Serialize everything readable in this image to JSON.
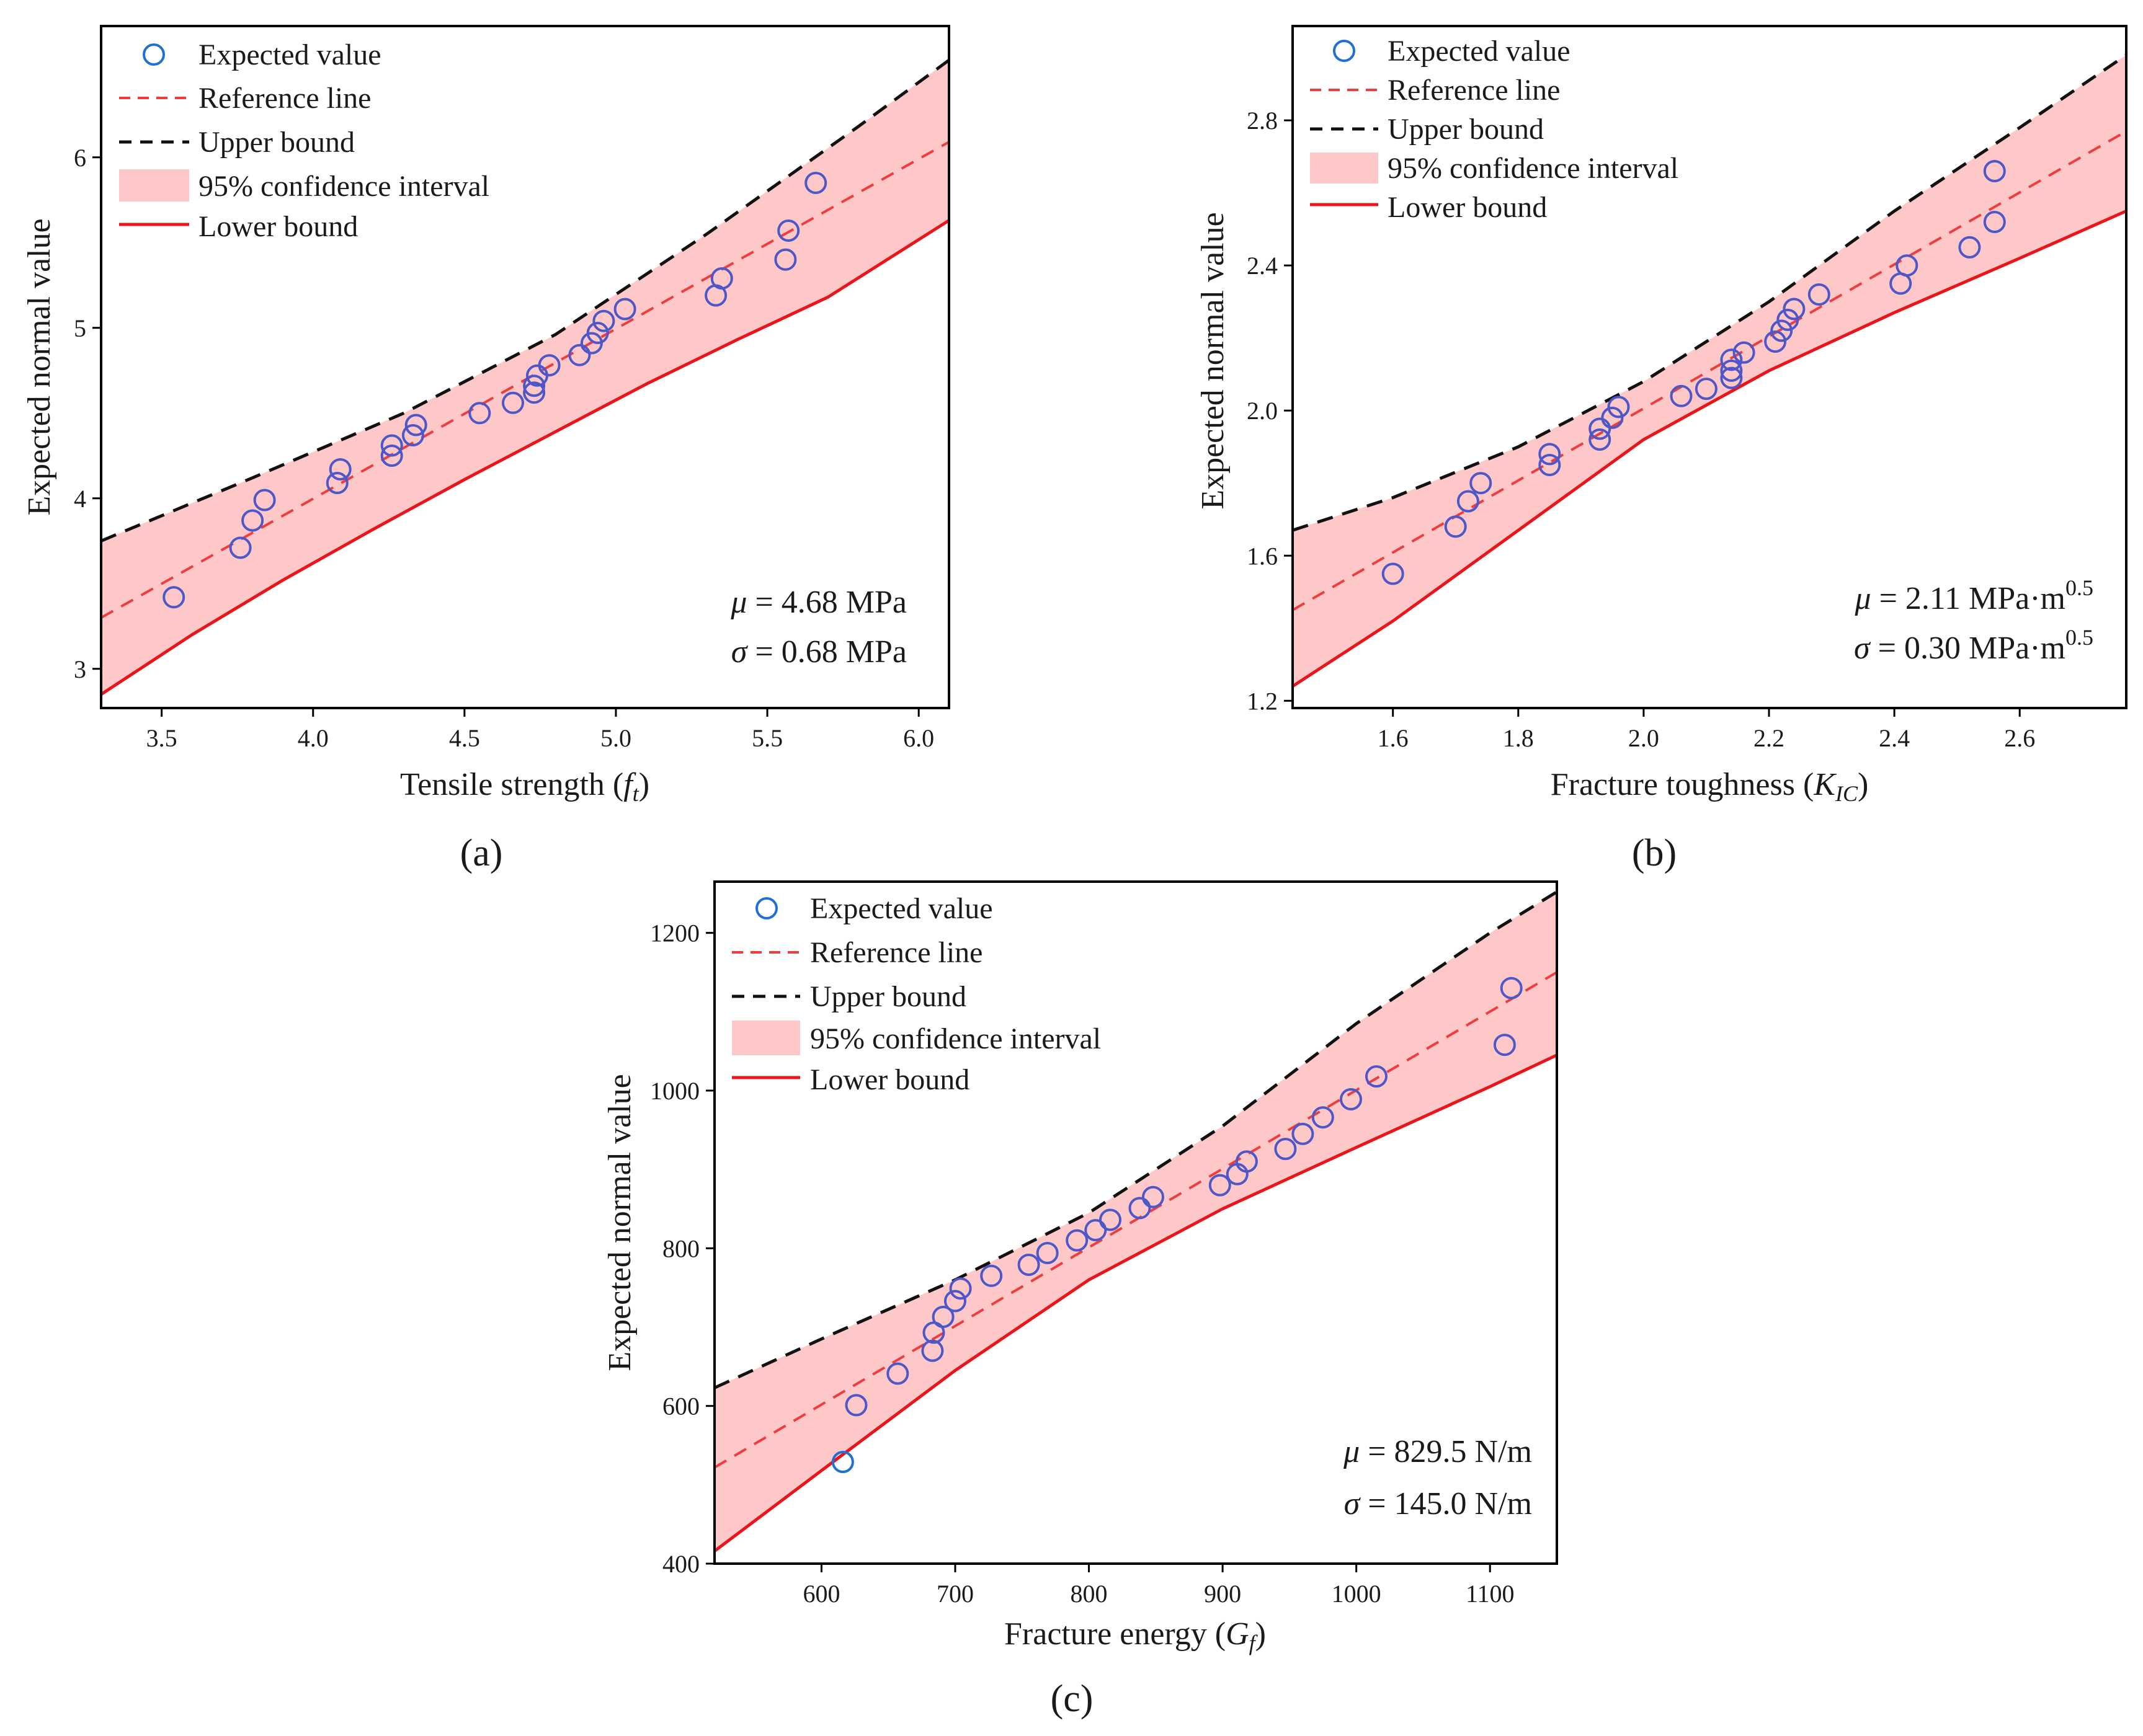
{
  "colors": {
    "marker": "#4d57c8",
    "legend_marker": "#1f6fd6",
    "reference": "#f03c3c",
    "upper": "#111111",
    "lower": "#e8151a",
    "band": "#ffc8c8",
    "axis": "#000000"
  },
  "legend": {
    "expected": "Expected value",
    "reference": "Reference line",
    "upper": "Upper bound",
    "ci": "95% confidence interval",
    "lower": "Lower bound"
  },
  "chart_data": [
    {
      "panel": "a",
      "panel_label": "(a)",
      "type": "scatter",
      "xlabel_main": "Tensile strength (",
      "xlabel_var": "f",
      "xlabel_sub": "t",
      "xlabel_close": ")",
      "ylabel": "Expected normal value",
      "xlim": [
        3.3,
        6.1
      ],
      "ylim": [
        2.77,
        6.77
      ],
      "xticks": [
        3.5,
        4.0,
        4.5,
        5.0,
        5.5,
        6.0
      ],
      "xtick_labels": [
        "3.5",
        "4.0",
        "4.5",
        "5.0",
        "5.5",
        "6.0"
      ],
      "yticks": [
        3,
        4,
        5,
        6
      ],
      "ytick_labels": [
        "3",
        "4",
        "5",
        "6"
      ],
      "mu_symbol": "μ",
      "mu_text": " = 4.68 MPa",
      "mu_sup": "",
      "sigma_symbol": "σ",
      "sigma_text": " = 0.68 MPa",
      "sigma_sup": "",
      "points": [
        [
          3.54,
          3.42
        ],
        [
          3.76,
          3.71
        ],
        [
          3.8,
          3.87
        ],
        [
          3.84,
          3.99
        ],
        [
          4.08,
          4.09
        ],
        [
          4.09,
          4.17
        ],
        [
          4.26,
          4.25
        ],
        [
          4.26,
          4.31
        ],
        [
          4.33,
          4.37
        ],
        [
          4.34,
          4.43
        ],
        [
          4.55,
          4.5
        ],
        [
          4.66,
          4.56
        ],
        [
          4.73,
          4.62
        ],
        [
          4.73,
          4.66
        ],
        [
          4.74,
          4.72
        ],
        [
          4.78,
          4.78
        ],
        [
          4.88,
          4.84
        ],
        [
          4.92,
          4.91
        ],
        [
          4.94,
          4.97
        ],
        [
          4.96,
          5.04
        ],
        [
          5.03,
          5.11
        ],
        [
          5.33,
          5.19
        ],
        [
          5.35,
          5.29
        ],
        [
          5.56,
          5.4
        ],
        [
          5.57,
          5.57
        ],
        [
          5.66,
          5.85
        ]
      ],
      "reference": [
        [
          3.3,
          3.3
        ],
        [
          6.1,
          6.09
        ]
      ],
      "upper": [
        [
          3.3,
          3.75
        ],
        [
          3.8,
          4.12
        ],
        [
          4.3,
          4.5
        ],
        [
          4.8,
          4.96
        ],
        [
          5.3,
          5.55
        ],
        [
          5.8,
          6.18
        ],
        [
          6.1,
          6.57
        ]
      ],
      "lower": [
        [
          3.3,
          2.85
        ],
        [
          3.6,
          3.2
        ],
        [
          3.9,
          3.52
        ],
        [
          4.2,
          3.82
        ],
        [
          4.5,
          4.11
        ],
        [
          4.8,
          4.39
        ],
        [
          5.1,
          4.67
        ],
        [
          5.4,
          4.93
        ],
        [
          5.7,
          5.18
        ],
        [
          6.1,
          5.63
        ]
      ]
    },
    {
      "panel": "b",
      "panel_label": "(b)",
      "type": "scatter",
      "xlabel_main": "Fracture toughness (",
      "xlabel_var": "K",
      "xlabel_sub": "IC",
      "xlabel_close": ")",
      "ylabel": "Expected normal value",
      "xlim": [
        1.44,
        2.77
      ],
      "ylim": [
        1.18,
        3.06
      ],
      "xticks": [
        1.6,
        1.8,
        2.0,
        2.2,
        2.4,
        2.6
      ],
      "xtick_labels": [
        "1.6",
        "1.8",
        "2.0",
        "2.2",
        "2.4",
        "2.6"
      ],
      "yticks": [
        1.2,
        1.6,
        2.0,
        2.4,
        2.8
      ],
      "ytick_labels": [
        "1.2",
        "1.6",
        "2.0",
        "2.4",
        "2.8"
      ],
      "mu_symbol": "μ",
      "mu_text": " = 2.11 MPa·m",
      "mu_sup": "0.5",
      "sigma_symbol": "σ",
      "sigma_text": " = 0.30 MPa·m",
      "sigma_sup": "0.5",
      "points": [
        [
          1.6,
          1.55
        ],
        [
          1.7,
          1.68
        ],
        [
          1.72,
          1.75
        ],
        [
          1.74,
          1.8
        ],
        [
          1.85,
          1.85
        ],
        [
          1.85,
          1.88
        ],
        [
          1.93,
          1.92
        ],
        [
          1.93,
          1.95
        ],
        [
          1.95,
          1.98
        ],
        [
          1.96,
          2.01
        ],
        [
          2.06,
          2.04
        ],
        [
          2.1,
          2.06
        ],
        [
          2.14,
          2.09
        ],
        [
          2.14,
          2.11
        ],
        [
          2.14,
          2.14
        ],
        [
          2.16,
          2.16
        ],
        [
          2.21,
          2.19
        ],
        [
          2.22,
          2.22
        ],
        [
          2.23,
          2.25
        ],
        [
          2.24,
          2.28
        ],
        [
          2.28,
          2.32
        ],
        [
          2.41,
          2.35
        ],
        [
          2.42,
          2.4
        ],
        [
          2.52,
          2.45
        ],
        [
          2.56,
          2.52
        ],
        [
          2.56,
          2.66
        ]
      ],
      "reference": [
        [
          1.44,
          1.45
        ],
        [
          2.77,
          2.77
        ]
      ],
      "upper": [
        [
          1.44,
          1.67
        ],
        [
          1.6,
          1.76
        ],
        [
          1.8,
          1.9
        ],
        [
          2.0,
          2.08
        ],
        [
          2.2,
          2.3
        ],
        [
          2.4,
          2.55
        ],
        [
          2.6,
          2.78
        ],
        [
          2.77,
          2.98
        ]
      ],
      "lower": [
        [
          1.44,
          1.24
        ],
        [
          1.6,
          1.42
        ],
        [
          1.8,
          1.67
        ],
        [
          2.0,
          1.92
        ],
        [
          2.2,
          2.11
        ],
        [
          2.4,
          2.27
        ],
        [
          2.6,
          2.42
        ],
        [
          2.77,
          2.55
        ]
      ]
    },
    {
      "panel": "c",
      "panel_label": "(c)",
      "type": "scatter",
      "xlabel_main": "Fracture energy (",
      "xlabel_var": "G",
      "xlabel_sub": "f",
      "xlabel_close": ")",
      "ylabel": "Expected normal value",
      "xlim": [
        520,
        1150
      ],
      "ylim": [
        400,
        1265
      ],
      "xticks": [
        600,
        700,
        800,
        900,
        1000,
        1100
      ],
      "xtick_labels": [
        "600",
        "700",
        "800",
        "900",
        "1000",
        "1100"
      ],
      "yticks": [
        400,
        600,
        800,
        1000,
        1200
      ],
      "ytick_labels": [
        "400",
        "600",
        "800",
        "1000",
        "1200"
      ],
      "mu_symbol": "μ",
      "mu_text": " = 829.5 N/m",
      "mu_sup": "",
      "sigma_symbol": "σ",
      "sigma_text": " = 145.0 N/m",
      "sigma_sup": "",
      "points": [
        [
          626,
          601
        ],
        [
          657,
          641
        ],
        [
          683,
          670
        ],
        [
          684,
          693
        ],
        [
          691,
          713
        ],
        [
          700,
          733
        ],
        [
          704,
          749
        ],
        [
          727,
          765
        ],
        [
          755,
          779
        ],
        [
          769,
          794
        ],
        [
          791,
          810
        ],
        [
          805,
          823
        ],
        [
          816,
          836
        ],
        [
          838,
          851
        ],
        [
          848,
          865
        ],
        [
          898,
          880
        ],
        [
          911,
          894
        ],
        [
          918,
          910
        ],
        [
          947,
          926
        ],
        [
          960,
          945
        ],
        [
          975,
          966
        ],
        [
          996,
          989
        ],
        [
          1015,
          1018
        ],
        [
          1111,
          1058
        ],
        [
          1116,
          1130
        ]
      ],
      "outlier_point": [
        616,
        529
      ],
      "reference": [
        [
          520,
          522
        ],
        [
          1150,
          1150
        ]
      ],
      "upper": [
        [
          520,
          623
        ],
        [
          600,
          685
        ],
        [
          700,
          760
        ],
        [
          800,
          845
        ],
        [
          900,
          955
        ],
        [
          1000,
          1085
        ],
        [
          1100,
          1200
        ],
        [
          1150,
          1252
        ]
      ],
      "lower": [
        [
          520,
          416
        ],
        [
          600,
          518
        ],
        [
          700,
          645
        ],
        [
          800,
          760
        ],
        [
          900,
          850
        ],
        [
          1000,
          928
        ],
        [
          1100,
          1005
        ],
        [
          1150,
          1045
        ]
      ]
    }
  ]
}
